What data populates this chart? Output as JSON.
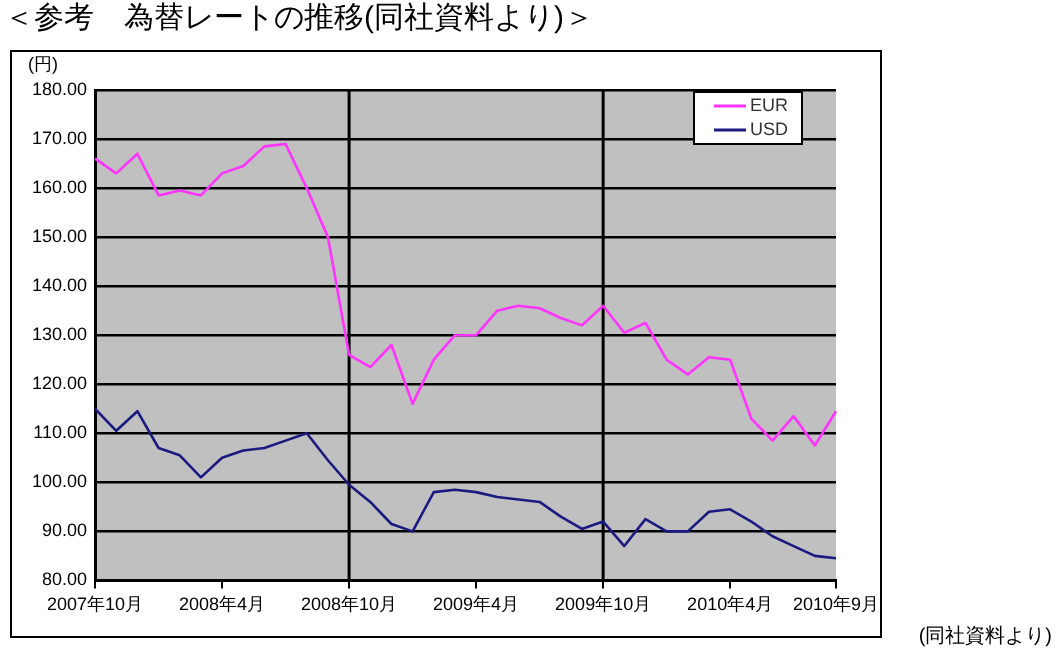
{
  "chart_data": {
    "type": "line",
    "title": "＜参考　為替レートの推移(同社資料より)＞",
    "ylabel": "(円)",
    "annotations": [
      "(同社資料より)"
    ],
    "categories": [
      "2007年10月",
      null,
      null,
      null,
      null,
      null,
      "2008年4月",
      null,
      null,
      null,
      null,
      null,
      "2008年10月",
      null,
      null,
      null,
      null,
      null,
      "2009年4月",
      null,
      null,
      null,
      null,
      null,
      "2009年10月",
      null,
      null,
      null,
      null,
      null,
      "2010年4月",
      null,
      null,
      null,
      null,
      "2010年9月"
    ],
    "series": [
      {
        "name": "EUR",
        "color": "#ff33ff",
        "values": [
          166,
          163,
          167,
          158.5,
          159.5,
          158.5,
          163,
          164.5,
          168.5,
          169,
          160,
          150,
          126,
          123.5,
          128,
          116,
          125,
          130,
          130,
          135,
          136,
          135.5,
          133.5,
          132,
          136,
          130.5,
          132.5,
          125,
          122,
          125.5,
          125,
          113,
          108.5,
          113.5,
          107.5,
          114.5
        ]
      },
      {
        "name": "USD",
        "color": "#1a1a80",
        "values": [
          115,
          110.5,
          114.5,
          107,
          105.5,
          101,
          105,
          106.5,
          107,
          108.5,
          110,
          104.5,
          99.5,
          96,
          91.5,
          90,
          98,
          98.5,
          98,
          97,
          96.5,
          96,
          93,
          90.5,
          92,
          87,
          92.5,
          90,
          90,
          94,
          94.5,
          92,
          89,
          87,
          85,
          84.5
        ]
      }
    ],
    "ylim": [
      80,
      180
    ],
    "yticks": [
      {
        "value": 80,
        "label": "80.00"
      },
      {
        "value": 90,
        "label": "90.00"
      },
      {
        "value": 100,
        "label": "100.00"
      },
      {
        "value": 110,
        "label": "110.00"
      },
      {
        "value": 120,
        "label": "120.00"
      },
      {
        "value": 130,
        "label": "130.00"
      },
      {
        "value": 140,
        "label": "140.00"
      },
      {
        "value": 150,
        "label": "150.00"
      },
      {
        "value": 160,
        "label": "160.00"
      },
      {
        "value": 170,
        "label": "170.00"
      },
      {
        "value": 180,
        "label": "180.00"
      }
    ],
    "grid": "y",
    "legend": "top right",
    "marker": "none",
    "line_style": "solid",
    "ref_lines": [
      {
        "axis": "x",
        "value": "2008年10月",
        "color": "#000000"
      },
      {
        "axis": "x",
        "value": "2009年10月",
        "color": "#000000"
      }
    ]
  }
}
